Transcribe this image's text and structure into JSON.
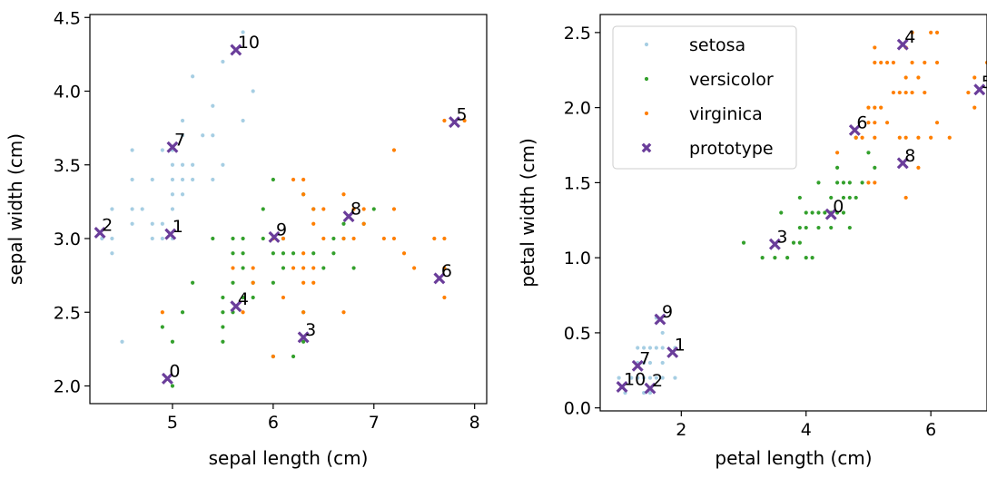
{
  "chart_data": [
    {
      "type": "scatter",
      "xlabel": "sepal length (cm)",
      "ylabel": "sepal width (cm)",
      "xlim": [
        4.18,
        8.12
      ],
      "ylim": [
        1.88,
        4.52
      ],
      "xticks": [
        "5",
        "6",
        "7",
        "8"
      ],
      "yticks": [
        "2.0",
        "2.5",
        "3.0",
        "3.5",
        "4.0",
        "4.5"
      ],
      "legend": null,
      "series": [
        {
          "name": "setosa",
          "color": "#a6cee3",
          "points": [
            [
              4.3,
              3.0
            ],
            [
              4.4,
              2.9
            ],
            [
              4.4,
              3.0
            ],
            [
              4.4,
              3.2
            ],
            [
              4.5,
              2.3
            ],
            [
              4.6,
              3.1
            ],
            [
              4.6,
              3.2
            ],
            [
              4.6,
              3.4
            ],
            [
              4.6,
              3.6
            ],
            [
              4.7,
              3.2
            ],
            [
              4.8,
              3.0
            ],
            [
              4.8,
              3.1
            ],
            [
              4.8,
              3.4
            ],
            [
              4.9,
              3.0
            ],
            [
              4.9,
              3.1
            ],
            [
              4.9,
              3.6
            ],
            [
              5.0,
              3.0
            ],
            [
              5.0,
              3.2
            ],
            [
              5.0,
              3.3
            ],
            [
              5.0,
              3.4
            ],
            [
              5.0,
              3.5
            ],
            [
              5.0,
              3.6
            ],
            [
              5.1,
              3.3
            ],
            [
              5.1,
              3.4
            ],
            [
              5.1,
              3.5
            ],
            [
              5.1,
              3.7
            ],
            [
              5.1,
              3.8
            ],
            [
              5.2,
              3.4
            ],
            [
              5.2,
              3.5
            ],
            [
              5.2,
              4.1
            ],
            [
              5.3,
              3.7
            ],
            [
              5.4,
              3.4
            ],
            [
              5.4,
              3.7
            ],
            [
              5.4,
              3.9
            ],
            [
              5.5,
              3.5
            ],
            [
              5.5,
              4.2
            ],
            [
              5.7,
              3.8
            ],
            [
              5.7,
              4.4
            ],
            [
              5.8,
              4.0
            ]
          ]
        },
        {
          "name": "versicolor",
          "color": "#33a02c",
          "points": [
            [
              4.9,
              2.4
            ],
            [
              5.0,
              2.0
            ],
            [
              5.0,
              2.3
            ],
            [
              5.1,
              2.5
            ],
            [
              5.2,
              2.7
            ],
            [
              5.4,
              3.0
            ],
            [
              5.5,
              2.3
            ],
            [
              5.5,
              2.4
            ],
            [
              5.5,
              2.5
            ],
            [
              5.5,
              2.6
            ],
            [
              5.6,
              2.5
            ],
            [
              5.6,
              2.7
            ],
            [
              5.6,
              2.9
            ],
            [
              5.6,
              3.0
            ],
            [
              5.7,
              2.6
            ],
            [
              5.7,
              2.8
            ],
            [
              5.7,
              2.9
            ],
            [
              5.7,
              3.0
            ],
            [
              5.8,
              2.6
            ],
            [
              5.8,
              2.7
            ],
            [
              5.9,
              3.0
            ],
            [
              5.9,
              3.2
            ],
            [
              6.0,
              2.2
            ],
            [
              6.0,
              2.7
            ],
            [
              6.0,
              2.9
            ],
            [
              6.0,
              3.4
            ],
            [
              6.1,
              2.8
            ],
            [
              6.1,
              2.9
            ],
            [
              6.1,
              3.0
            ],
            [
              6.2,
              2.2
            ],
            [
              6.2,
              2.9
            ],
            [
              6.3,
              2.3
            ],
            [
              6.3,
              2.5
            ],
            [
              6.3,
              3.3
            ],
            [
              6.4,
              2.9
            ],
            [
              6.4,
              3.2
            ],
            [
              6.5,
              2.8
            ],
            [
              6.6,
              2.9
            ],
            [
              6.6,
              3.0
            ],
            [
              6.7,
              3.0
            ],
            [
              6.7,
              3.1
            ],
            [
              6.8,
              2.8
            ],
            [
              6.9,
              3.1
            ],
            [
              7.0,
              3.2
            ]
          ]
        },
        {
          "name": "virginica",
          "color": "#ff7f00",
          "points": [
            [
              4.9,
              2.5
            ],
            [
              5.6,
              2.8
            ],
            [
              5.7,
              2.5
            ],
            [
              5.8,
              2.7
            ],
            [
              5.8,
              2.8
            ],
            [
              6.0,
              2.2
            ],
            [
              6.0,
              3.0
            ],
            [
              6.1,
              2.6
            ],
            [
              6.1,
              3.0
            ],
            [
              6.2,
              2.8
            ],
            [
              6.2,
              3.4
            ],
            [
              6.3,
              2.5
            ],
            [
              6.3,
              2.7
            ],
            [
              6.3,
              2.8
            ],
            [
              6.3,
              2.9
            ],
            [
              6.3,
              3.3
            ],
            [
              6.3,
              3.4
            ],
            [
              6.4,
              2.7
            ],
            [
              6.4,
              2.8
            ],
            [
              6.4,
              3.1
            ],
            [
              6.4,
              3.2
            ],
            [
              6.5,
              3.0
            ],
            [
              6.5,
              3.2
            ],
            [
              6.7,
              2.5
            ],
            [
              6.7,
              3.0
            ],
            [
              6.7,
              3.3
            ],
            [
              6.8,
              3.0
            ],
            [
              6.8,
              3.2
            ],
            [
              6.9,
              3.1
            ],
            [
              6.9,
              3.2
            ],
            [
              7.1,
              3.0
            ],
            [
              7.2,
              3.0
            ],
            [
              7.2,
              3.2
            ],
            [
              7.2,
              3.6
            ],
            [
              7.3,
              2.9
            ],
            [
              7.4,
              2.8
            ],
            [
              7.6,
              3.0
            ],
            [
              7.7,
              2.6
            ],
            [
              7.7,
              2.8
            ],
            [
              7.7,
              3.0
            ],
            [
              7.7,
              3.8
            ],
            [
              7.9,
              3.8
            ]
          ]
        },
        {
          "name": "prototype",
          "color": "#6a3d9a",
          "marker": "x",
          "points": [
            [
              4.95,
              2.05
            ],
            [
              4.98,
              3.03
            ],
            [
              4.28,
              3.04
            ],
            [
              6.3,
              2.33
            ],
            [
              5.63,
              2.54
            ],
            [
              7.8,
              3.79
            ],
            [
              7.65,
              2.73
            ],
            [
              5.0,
              3.62
            ],
            [
              6.75,
              3.15
            ],
            [
              6.01,
              3.01
            ],
            [
              5.63,
              4.28
            ]
          ],
          "labels": [
            "0",
            "1",
            "2",
            "3",
            "4",
            "5",
            "6",
            "7",
            "8",
            "9",
            "10"
          ]
        }
      ]
    },
    {
      "type": "scatter",
      "xlabel": "petal length (cm)",
      "ylabel": "petal width (cm)",
      "xlim": [
        0.7,
        6.9
      ],
      "ylim": [
        -0.02,
        2.62
      ],
      "xticks": [
        "2",
        "4",
        "6"
      ],
      "yticks": [
        "0.0",
        "0.5",
        "1.0",
        "1.5",
        "2.0",
        "2.5"
      ],
      "legend": "top-left",
      "series": [
        {
          "name": "setosa",
          "color": "#a6cee3",
          "points": [
            [
              1.0,
              0.2
            ],
            [
              1.1,
              0.1
            ],
            [
              1.2,
              0.2
            ],
            [
              1.3,
              0.2
            ],
            [
              1.3,
              0.3
            ],
            [
              1.3,
              0.4
            ],
            [
              1.4,
              0.1
            ],
            [
              1.4,
              0.2
            ],
            [
              1.4,
              0.3
            ],
            [
              1.4,
              0.4
            ],
            [
              1.5,
              0.1
            ],
            [
              1.5,
              0.2
            ],
            [
              1.5,
              0.3
            ],
            [
              1.5,
              0.4
            ],
            [
              1.6,
              0.2
            ],
            [
              1.6,
              0.4
            ],
            [
              1.6,
              0.6
            ],
            [
              1.7,
              0.2
            ],
            [
              1.7,
              0.3
            ],
            [
              1.7,
              0.4
            ],
            [
              1.7,
              0.5
            ],
            [
              1.9,
              0.2
            ],
            [
              1.9,
              0.4
            ]
          ]
        },
        {
          "name": "versicolor",
          "color": "#33a02c",
          "points": [
            [
              3.0,
              1.1
            ],
            [
              3.3,
              1.0
            ],
            [
              3.5,
              1.0
            ],
            [
              3.6,
              1.3
            ],
            [
              3.7,
              1.0
            ],
            [
              3.8,
              1.1
            ],
            [
              3.9,
              1.1
            ],
            [
              3.9,
              1.2
            ],
            [
              3.9,
              1.4
            ],
            [
              4.0,
              1.0
            ],
            [
              4.0,
              1.2
            ],
            [
              4.0,
              1.3
            ],
            [
              4.1,
              1.0
            ],
            [
              4.1,
              1.3
            ],
            [
              4.2,
              1.2
            ],
            [
              4.2,
              1.3
            ],
            [
              4.2,
              1.5
            ],
            [
              4.3,
              1.3
            ],
            [
              4.4,
              1.2
            ],
            [
              4.4,
              1.3
            ],
            [
              4.4,
              1.4
            ],
            [
              4.5,
              1.3
            ],
            [
              4.5,
              1.5
            ],
            [
              4.5,
              1.6
            ],
            [
              4.6,
              1.3
            ],
            [
              4.6,
              1.4
            ],
            [
              4.6,
              1.5
            ],
            [
              4.7,
              1.2
            ],
            [
              4.7,
              1.4
            ],
            [
              4.7,
              1.5
            ],
            [
              4.8,
              1.4
            ],
            [
              4.8,
              1.8
            ],
            [
              4.9,
              1.5
            ],
            [
              5.0,
              1.7
            ],
            [
              5.1,
              1.6
            ]
          ]
        },
        {
          "name": "virginica",
          "color": "#ff7f00",
          "points": [
            [
              4.5,
              1.7
            ],
            [
              4.8,
              1.8
            ],
            [
              4.9,
              1.8
            ],
            [
              5.0,
              1.5
            ],
            [
              5.0,
              1.9
            ],
            [
              5.0,
              2.0
            ],
            [
              5.1,
              1.5
            ],
            [
              5.1,
              1.8
            ],
            [
              5.1,
              1.9
            ],
            [
              5.1,
              2.0
            ],
            [
              5.1,
              2.3
            ],
            [
              5.1,
              2.4
            ],
            [
              5.2,
              2.0
            ],
            [
              5.2,
              2.3
            ],
            [
              5.3,
              1.9
            ],
            [
              5.3,
              2.3
            ],
            [
              5.4,
              2.1
            ],
            [
              5.4,
              2.3
            ],
            [
              5.5,
              1.8
            ],
            [
              5.5,
              2.1
            ],
            [
              5.6,
              1.4
            ],
            [
              5.6,
              1.8
            ],
            [
              5.6,
              2.1
            ],
            [
              5.6,
              2.2
            ],
            [
              5.6,
              2.4
            ],
            [
              5.7,
              2.1
            ],
            [
              5.7,
              2.3
            ],
            [
              5.7,
              2.5
            ],
            [
              5.8,
              1.6
            ],
            [
              5.8,
              1.8
            ],
            [
              5.8,
              2.2
            ],
            [
              5.9,
              2.1
            ],
            [
              5.9,
              2.3
            ],
            [
              6.0,
              1.8
            ],
            [
              6.0,
              2.5
            ],
            [
              6.1,
              1.9
            ],
            [
              6.1,
              2.3
            ],
            [
              6.1,
              2.5
            ],
            [
              6.3,
              1.8
            ],
            [
              6.6,
              2.1
            ],
            [
              6.7,
              2.0
            ],
            [
              6.7,
              2.2
            ],
            [
              6.9,
              2.3
            ]
          ]
        },
        {
          "name": "prototype",
          "color": "#6a3d9a",
          "marker": "x",
          "points": [
            [
              4.4,
              1.29
            ],
            [
              1.86,
              0.37
            ],
            [
              1.5,
              0.13
            ],
            [
              3.5,
              1.09
            ],
            [
              5.55,
              2.42
            ],
            [
              6.78,
              2.12
            ],
            [
              4.78,
              1.85
            ],
            [
              1.3,
              0.28
            ],
            [
              5.55,
              1.63
            ],
            [
              1.66,
              0.59
            ],
            [
              1.05,
              0.14
            ]
          ],
          "labels": [
            "0",
            "1",
            "2",
            "3",
            "4",
            "5",
            "6",
            "7",
            "8",
            "9",
            "10"
          ]
        }
      ]
    }
  ]
}
